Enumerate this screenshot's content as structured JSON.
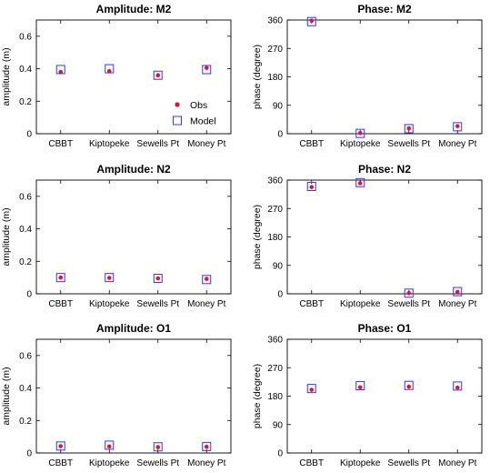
{
  "colors": {
    "obs": "#e8102a",
    "model": "#3333ff",
    "axis": "#000000"
  },
  "legend": {
    "obs_label": "Obs",
    "model_label": "Model",
    "placement": "inside, lower-right of first panel"
  },
  "chart_data": [
    {
      "type": "scatter",
      "title": "Amplitude: M2",
      "xlabel": "",
      "ylabel": "amplitude (m)",
      "categories": [
        "CBBT",
        "Kiptopeke",
        "Sewells Pt",
        "Money Pt"
      ],
      "ylim": [
        0,
        0.7
      ],
      "yticks": [
        0,
        0.2,
        0.4,
        0.6
      ],
      "ytick_labels": [
        "0",
        "0.2",
        "0.4",
        "0.6"
      ],
      "series": [
        {
          "name": "Obs",
          "marker": "dot",
          "values": [
            0.38,
            0.385,
            0.36,
            0.405
          ]
        },
        {
          "name": "Model",
          "marker": "square",
          "values": [
            0.395,
            0.4,
            0.36,
            0.395
          ]
        }
      ],
      "show_legend": true
    },
    {
      "type": "scatter",
      "title": "Phase: M2",
      "xlabel": "",
      "ylabel": "phase (degree)",
      "categories": [
        "CBBT",
        "Kiptopeke",
        "Sewells Pt",
        "Money Pt"
      ],
      "ylim": [
        0,
        360
      ],
      "yticks": [
        0,
        90,
        180,
        270,
        360
      ],
      "ytick_labels": [
        "0",
        "90",
        "180",
        "270",
        "360"
      ],
      "series": [
        {
          "name": "Obs",
          "marker": "dot",
          "values": [
            358,
            2,
            17,
            24
          ]
        },
        {
          "name": "Model",
          "marker": "square",
          "values": [
            355,
            1,
            16,
            22
          ]
        }
      ],
      "show_legend": false
    },
    {
      "type": "scatter",
      "title": "Amplitude: N2",
      "xlabel": "",
      "ylabel": "amplitude (m)",
      "categories": [
        "CBBT",
        "Kiptopeke",
        "Sewells Pt",
        "Money Pt"
      ],
      "ylim": [
        0,
        0.7
      ],
      "yticks": [
        0,
        0.2,
        0.4,
        0.6
      ],
      "ytick_labels": [
        "0",
        "0.2",
        "0.4",
        "0.6"
      ],
      "series": [
        {
          "name": "Obs",
          "marker": "dot",
          "values": [
            0.1,
            0.098,
            0.095,
            0.092
          ]
        },
        {
          "name": "Model",
          "marker": "square",
          "values": [
            0.1,
            0.1,
            0.095,
            0.088
          ]
        }
      ],
      "show_legend": false
    },
    {
      "type": "scatter",
      "title": "Phase: N2",
      "xlabel": "",
      "ylabel": "phase (degree)",
      "categories": [
        "CBBT",
        "Kiptopeke",
        "Sewells Pt",
        "Money Pt"
      ],
      "ylim": [
        0,
        360
      ],
      "yticks": [
        0,
        90,
        180,
        270,
        360
      ],
      "ytick_labels": [
        "0",
        "90",
        "180",
        "270",
        "360"
      ],
      "series": [
        {
          "name": "Obs",
          "marker": "dot",
          "values": [
            338,
            350,
            2,
            6
          ]
        },
        {
          "name": "Model",
          "marker": "square",
          "values": [
            340,
            352,
            2,
            7
          ]
        }
      ],
      "show_legend": false
    },
    {
      "type": "scatter",
      "title": "Amplitude: O1",
      "xlabel": "",
      "ylabel": "amplitude (m)",
      "categories": [
        "CBBT",
        "Kiptopeke",
        "Sewells Pt",
        "Money Pt"
      ],
      "ylim": [
        0,
        0.7
      ],
      "yticks": [
        0,
        0.2,
        0.4,
        0.6
      ],
      "ytick_labels": [
        "0",
        "0.2",
        "0.4",
        "0.6"
      ],
      "series": [
        {
          "name": "Obs",
          "marker": "dot",
          "values": [
            0.042,
            0.04,
            0.036,
            0.038
          ]
        },
        {
          "name": "Model",
          "marker": "square",
          "values": [
            0.043,
            0.048,
            0.038,
            0.04
          ]
        }
      ],
      "show_legend": false
    },
    {
      "type": "scatter",
      "title": "Phase: O1",
      "xlabel": "",
      "ylabel": "phase (degree)",
      "categories": [
        "CBBT",
        "Kiptopeke",
        "Sewells Pt",
        "Money Pt"
      ],
      "ylim": [
        0,
        360
      ],
      "yticks": [
        0,
        90,
        180,
        270,
        360
      ],
      "ytick_labels": [
        "0",
        "90",
        "180",
        "270",
        "360"
      ],
      "series": [
        {
          "name": "Obs",
          "marker": "dot",
          "values": [
            200,
            208,
            210,
            207
          ]
        },
        {
          "name": "Model",
          "marker": "square",
          "values": [
            204,
            213,
            214,
            212
          ]
        }
      ],
      "show_legend": false
    }
  ]
}
